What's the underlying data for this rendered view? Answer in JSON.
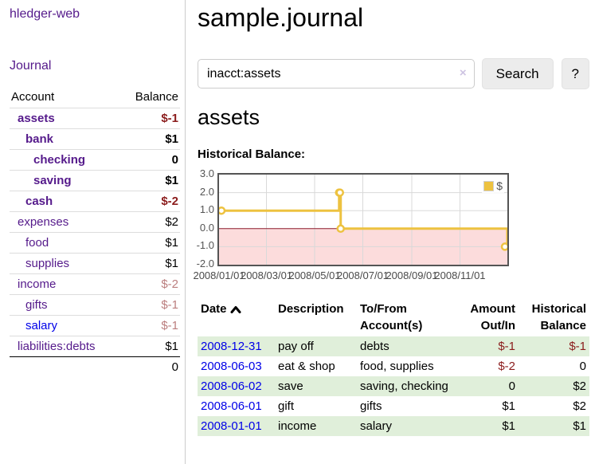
{
  "app": {
    "title": "hledger-web",
    "nav_journal": "Journal"
  },
  "sidebar": {
    "header": {
      "account": "Account",
      "balance": "Balance"
    },
    "accounts": [
      {
        "name": "assets",
        "balance": "$-1"
      },
      {
        "name": "bank",
        "balance": "$1"
      },
      {
        "name": "checking",
        "balance": "0"
      },
      {
        "name": "saving",
        "balance": "$1"
      },
      {
        "name": "cash",
        "balance": "$-2"
      },
      {
        "name": "expenses",
        "balance": "$2"
      },
      {
        "name": "food",
        "balance": "$1"
      },
      {
        "name": "supplies",
        "balance": "$1"
      },
      {
        "name": "income",
        "balance": "$-2"
      },
      {
        "name": "gifts",
        "balance": "$-1"
      },
      {
        "name": "salary",
        "balance": "$-1"
      },
      {
        "name": "liabilities:debts",
        "balance": "$1"
      }
    ],
    "total": "0"
  },
  "main": {
    "title": "sample.journal",
    "search": {
      "value": "inacct:assets",
      "clear_icon": "×",
      "button": "Search",
      "help_button": "?"
    },
    "account_heading": "assets",
    "chart_heading": "Historical Balance:"
  },
  "chart_data": {
    "type": "line",
    "step": true,
    "legend": "$",
    "legend_position": "top-right",
    "grid": true,
    "ylim": [
      -2,
      3
    ],
    "y_ticks": [
      3,
      2,
      1,
      0,
      -1,
      -2
    ],
    "y_tick_labels": [
      "3.0",
      "2.0",
      "1.0",
      "0.0",
      "-1.0",
      "-2.0"
    ],
    "x_ticks": [
      "2008/01/01",
      "2008/03/01",
      "2008/05/01",
      "2008/07/01",
      "2008/09/01",
      "2008/11/01"
    ],
    "series": [
      {
        "name": "$",
        "color": "#EDC240",
        "points": [
          [
            "2008-01-01",
            1
          ],
          [
            "2008-06-01",
            2
          ],
          [
            "2008-06-02",
            2
          ],
          [
            "2008-06-03",
            0
          ],
          [
            "2008-12-31",
            -1
          ]
        ]
      }
    ],
    "colors": {
      "line": "#EDC240",
      "negative_region": "#fcdcdc",
      "zero_line": "#8b1a2b",
      "gridline": "#d9d9d9",
      "border": "#545454"
    }
  },
  "register": {
    "columns": [
      "Date",
      "Description",
      "To/From Account(s)",
      "Amount Out/In",
      "Historical Balance"
    ],
    "rows": [
      {
        "date": "2008-12-31",
        "description": "pay off",
        "accounts": "debts",
        "amount": "$-1",
        "balance": "$-1"
      },
      {
        "date": "2008-06-03",
        "description": "eat & shop",
        "accounts": "food, supplies",
        "amount": "$-2",
        "balance": "0"
      },
      {
        "date": "2008-06-02",
        "description": "save",
        "accounts": "saving, checking",
        "amount": "0",
        "balance": "$2"
      },
      {
        "date": "2008-06-01",
        "description": "gift",
        "accounts": "gifts",
        "amount": "$1",
        "balance": "$2"
      },
      {
        "date": "2008-01-01",
        "description": "income",
        "accounts": "salary",
        "amount": "$1",
        "balance": "$1"
      }
    ]
  }
}
